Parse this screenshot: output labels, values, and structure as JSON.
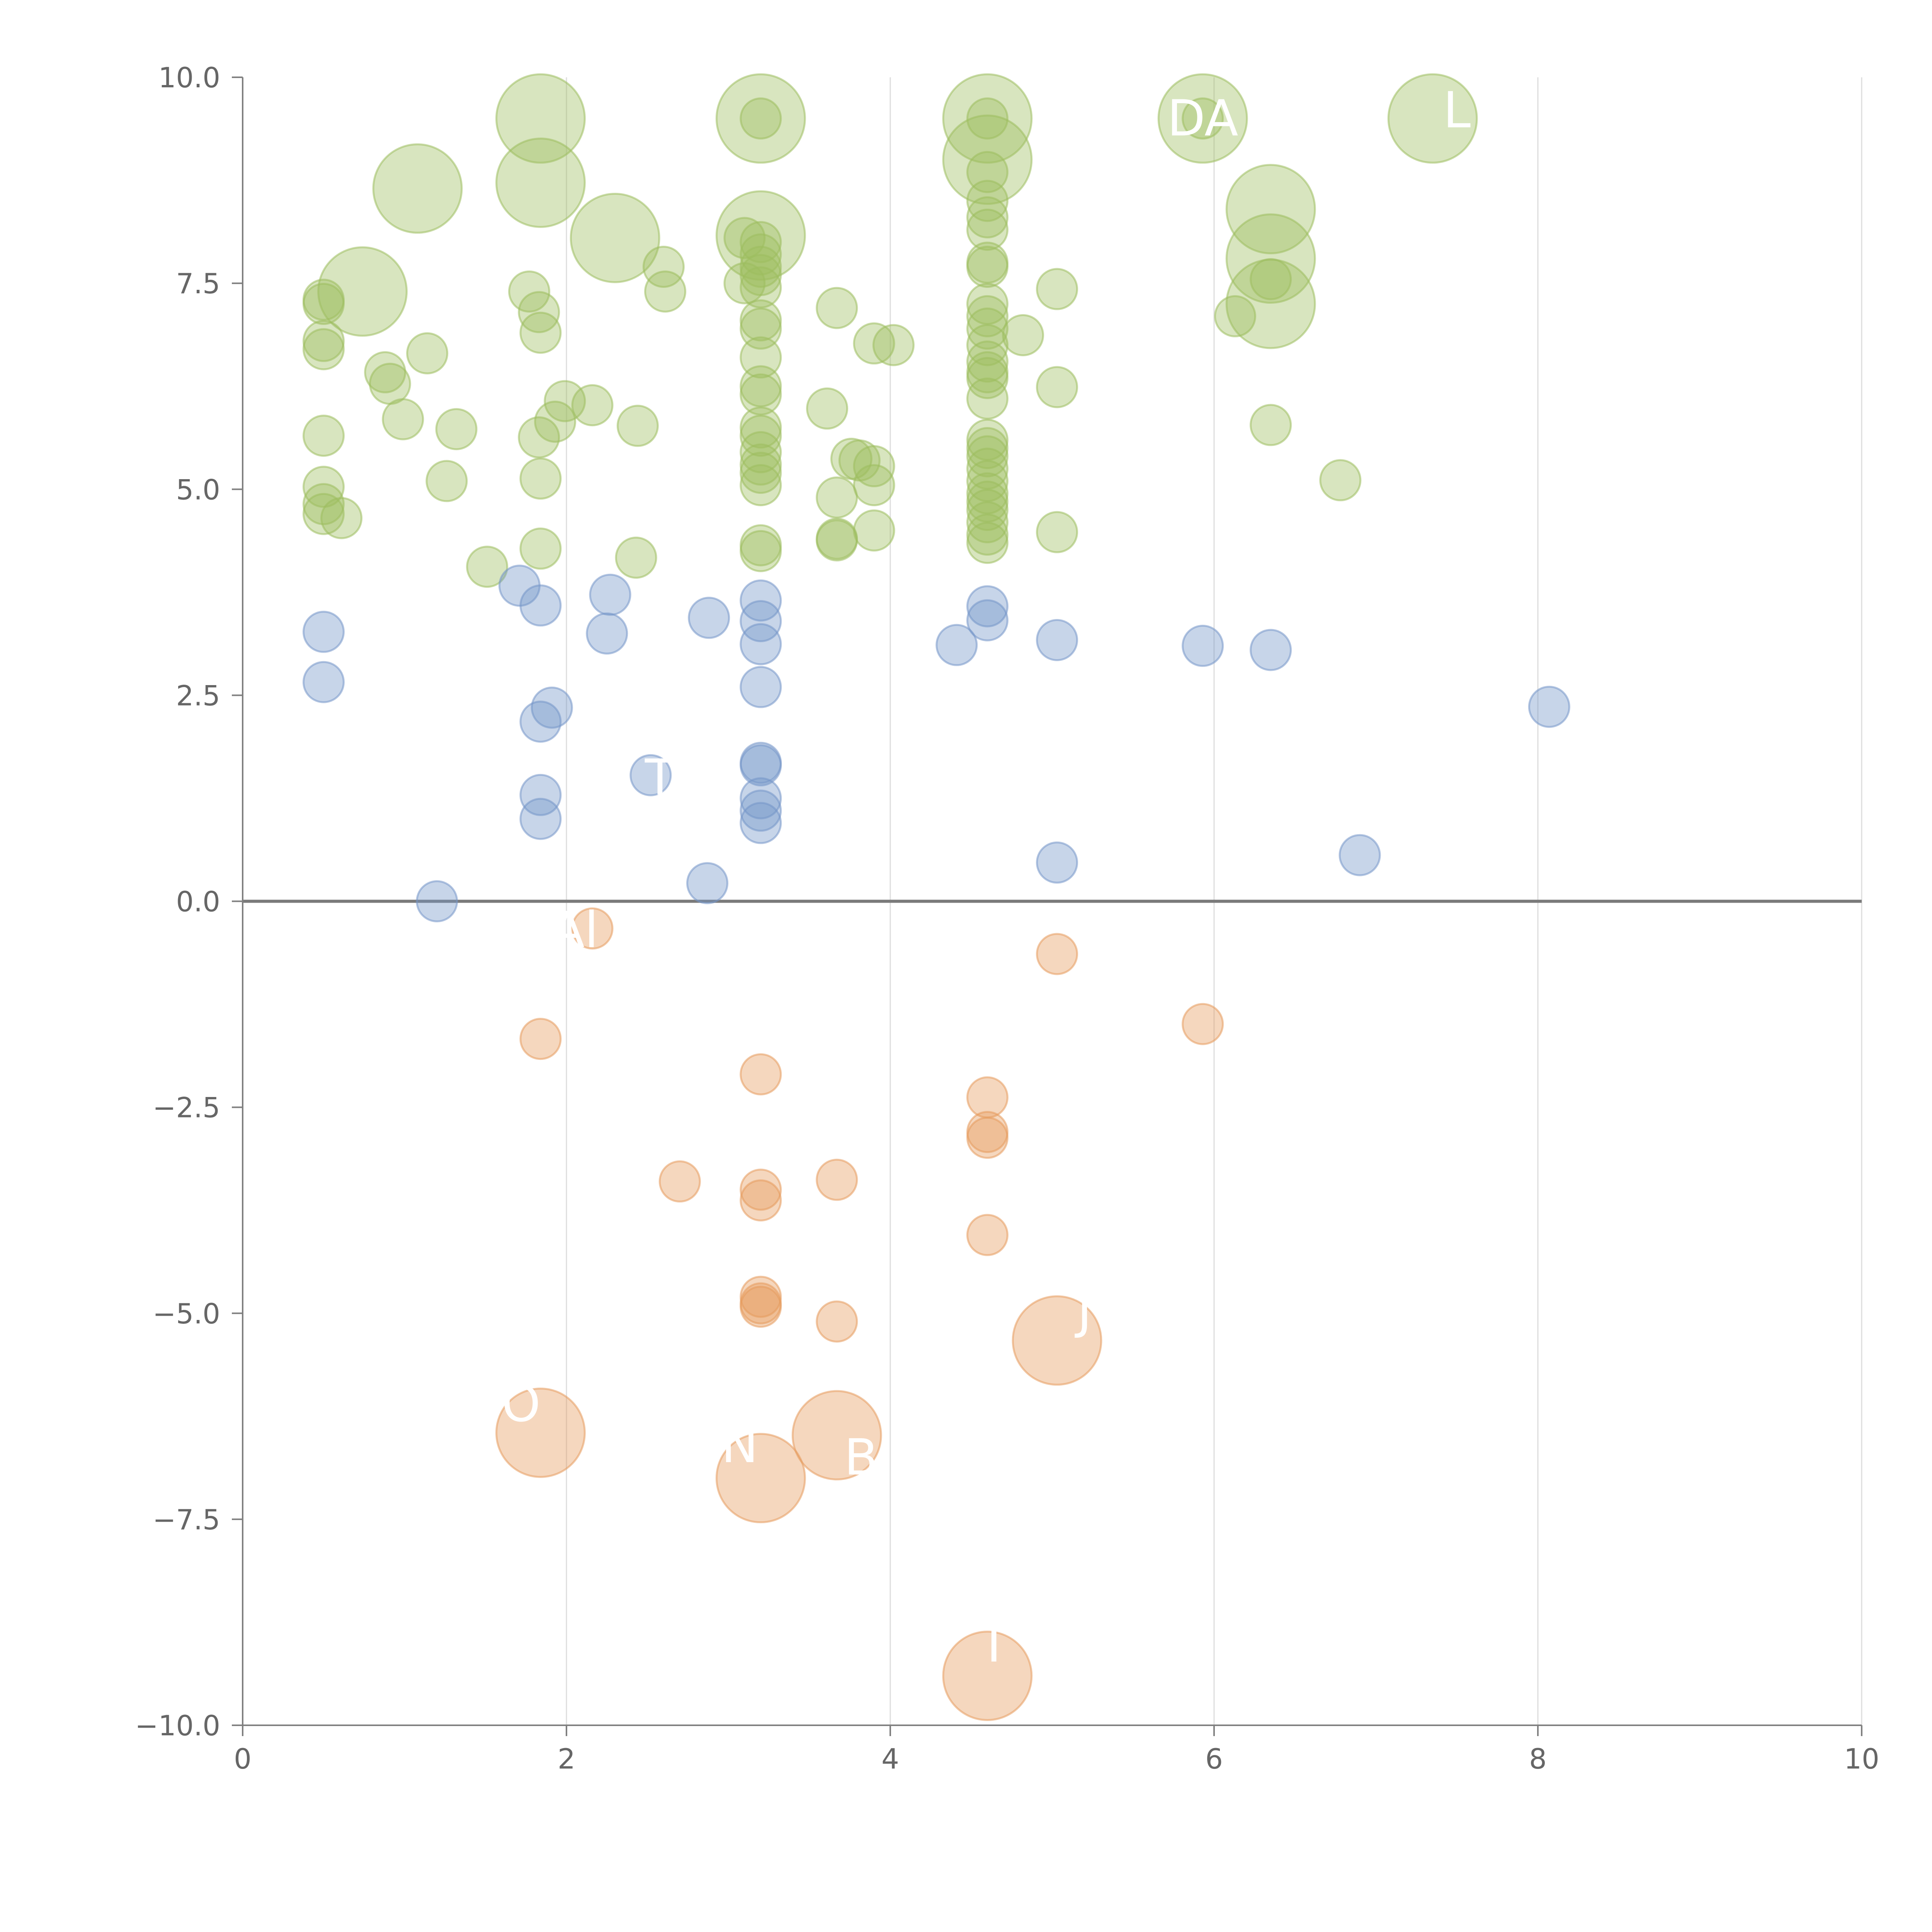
{
  "chart_data": {
    "type": "scatter",
    "title": "",
    "xlabel": "",
    "ylabel": "",
    "xlim": [
      0,
      10
    ],
    "ylim": [
      -10,
      10
    ],
    "x_ticks": [
      0,
      2,
      4,
      6,
      8,
      10
    ],
    "y_ticks": [
      -10,
      -7.5,
      -5,
      -2.5,
      0,
      2.5,
      5,
      7.5,
      10
    ],
    "x_tick_labels": [
      "0",
      "2",
      "4",
      "6",
      "8",
      "10"
    ],
    "y_tick_labels": [
      "−10.0",
      "−7.5",
      "−5.0",
      "−2.5",
      "0.0",
      "2.5",
      "5.0",
      "7.5",
      "10.0"
    ],
    "grid_x": true,
    "grid_y": false,
    "zero_line": true,
    "colors": {
      "high": "#9dbd5e",
      "mid": "#7496c8",
      "low": "#e69a5c",
      "bubble_opacity": 0.4
    },
    "size_scale": "small = 1, large = 2.2 (relative radius)",
    "series": [
      {
        "group": "high",
        "points": [
          {
            "x": 1.84,
            "y": 9.5,
            "size": 2.2
          },
          {
            "x": 3.2,
            "y": 9.5,
            "size": 2.2
          },
          {
            "x": 3.2,
            "y": 9.5,
            "size": 1
          },
          {
            "x": 4.6,
            "y": 9.5,
            "size": 2.2
          },
          {
            "x": 4.6,
            "y": 9.5,
            "size": 1
          },
          {
            "x": 5.93,
            "y": 9.5,
            "size": 2.2
          },
          {
            "x": 5.93,
            "y": 9.5,
            "size": 1
          },
          {
            "x": 7.35,
            "y": 9.5,
            "size": 2.2
          },
          {
            "x": 4.6,
            "y": 9.0,
            "size": 2.2
          },
          {
            "x": 4.6,
            "y": 8.85,
            "size": 1
          },
          {
            "x": 1.84,
            "y": 8.72,
            "size": 2.2
          },
          {
            "x": 1.08,
            "y": 8.65,
            "size": 2.2
          },
          {
            "x": 4.6,
            "y": 8.5,
            "size": 1
          },
          {
            "x": 6.35,
            "y": 8.4,
            "size": 2.2
          },
          {
            "x": 4.6,
            "y": 8.3,
            "size": 1
          },
          {
            "x": 4.6,
            "y": 8.15,
            "size": 1
          },
          {
            "x": 3.2,
            "y": 8.08,
            "size": 2.2
          },
          {
            "x": 2.3,
            "y": 8.05,
            "size": 2.2
          },
          {
            "x": 3.1,
            "y": 8.05,
            "size": 1
          },
          {
            "x": 3.2,
            "y": 8.0,
            "size": 1
          },
          {
            "x": 3.2,
            "y": 7.85,
            "size": 1
          },
          {
            "x": 6.35,
            "y": 7.8,
            "size": 2.2
          },
          {
            "x": 4.6,
            "y": 7.75,
            "size": 1
          },
          {
            "x": 3.2,
            "y": 7.7,
            "size": 1
          },
          {
            "x": 2.6,
            "y": 7.7,
            "size": 1
          },
          {
            "x": 4.6,
            "y": 7.7,
            "size": 1
          },
          {
            "x": 3.2,
            "y": 7.6,
            "size": 1
          },
          {
            "x": 6.35,
            "y": 7.55,
            "size": 1
          },
          {
            "x": 3.1,
            "y": 7.5,
            "size": 1
          },
          {
            "x": 3.2,
            "y": 7.45,
            "size": 1
          },
          {
            "x": 5.03,
            "y": 7.43,
            "size": 1
          },
          {
            "x": 0.74,
            "y": 7.4,
            "size": 2.2
          },
          {
            "x": 1.77,
            "y": 7.4,
            "size": 1
          },
          {
            "x": 2.61,
            "y": 7.4,
            "size": 1
          },
          {
            "x": 0.5,
            "y": 7.3,
            "size": 1
          },
          {
            "x": 0.5,
            "y": 7.25,
            "size": 1
          },
          {
            "x": 6.35,
            "y": 7.25,
            "size": 2.2
          },
          {
            "x": 4.6,
            "y": 7.25,
            "size": 1
          },
          {
            "x": 3.67,
            "y": 7.2,
            "size": 1
          },
          {
            "x": 1.83,
            "y": 7.15,
            "size": 1
          },
          {
            "x": 4.6,
            "y": 7.1,
            "size": 1
          },
          {
            "x": 6.13,
            "y": 7.1,
            "size": 1
          },
          {
            "x": 3.2,
            "y": 7.05,
            "size": 1
          },
          {
            "x": 3.2,
            "y": 6.95,
            "size": 1
          },
          {
            "x": 4.6,
            "y": 6.95,
            "size": 1
          },
          {
            "x": 1.84,
            "y": 6.9,
            "size": 1
          },
          {
            "x": 4.82,
            "y": 6.87,
            "size": 1
          },
          {
            "x": 0.5,
            "y": 6.8,
            "size": 1
          },
          {
            "x": 3.9,
            "y": 6.77,
            "size": 1
          },
          {
            "x": 4.02,
            "y": 6.75,
            "size": 1
          },
          {
            "x": 4.6,
            "y": 6.75,
            "size": 1
          },
          {
            "x": 0.5,
            "y": 6.7,
            "size": 1
          },
          {
            "x": 1.14,
            "y": 6.65,
            "size": 1
          },
          {
            "x": 3.2,
            "y": 6.6,
            "size": 1
          },
          {
            "x": 4.6,
            "y": 6.55,
            "size": 1
          },
          {
            "x": 0.88,
            "y": 6.42,
            "size": 1
          },
          {
            "x": 4.6,
            "y": 6.42,
            "size": 1
          },
          {
            "x": 4.6,
            "y": 6.35,
            "size": 1
          },
          {
            "x": 0.91,
            "y": 6.28,
            "size": 1
          },
          {
            "x": 3.2,
            "y": 6.25,
            "size": 1
          },
          {
            "x": 5.03,
            "y": 6.24,
            "size": 1
          },
          {
            "x": 3.2,
            "y": 6.15,
            "size": 1
          },
          {
            "x": 4.6,
            "y": 6.1,
            "size": 1
          },
          {
            "x": 1.99,
            "y": 6.07,
            "size": 1
          },
          {
            "x": 2.16,
            "y": 6.02,
            "size": 1
          },
          {
            "x": 3.61,
            "y": 5.98,
            "size": 1
          },
          {
            "x": 0.99,
            "y": 5.85,
            "size": 1
          },
          {
            "x": 1.93,
            "y": 5.82,
            "size": 1
          },
          {
            "x": 6.35,
            "y": 5.78,
            "size": 1
          },
          {
            "x": 2.44,
            "y": 5.77,
            "size": 1
          },
          {
            "x": 3.2,
            "y": 5.75,
            "size": 1
          },
          {
            "x": 1.32,
            "y": 5.73,
            "size": 1
          },
          {
            "x": 3.2,
            "y": 5.65,
            "size": 1
          },
          {
            "x": 0.5,
            "y": 5.65,
            "size": 1
          },
          {
            "x": 1.83,
            "y": 5.63,
            "size": 1
          },
          {
            "x": 4.6,
            "y": 5.6,
            "size": 1
          },
          {
            "x": 4.6,
            "y": 5.5,
            "size": 1
          },
          {
            "x": 3.2,
            "y": 5.45,
            "size": 1
          },
          {
            "x": 4.6,
            "y": 5.4,
            "size": 1
          },
          {
            "x": 3.76,
            "y": 5.37,
            "size": 1
          },
          {
            "x": 3.81,
            "y": 5.35,
            "size": 1
          },
          {
            "x": 3.2,
            "y": 5.3,
            "size": 1
          },
          {
            "x": 3.9,
            "y": 5.28,
            "size": 1
          },
          {
            "x": 4.6,
            "y": 5.25,
            "size": 1
          },
          {
            "x": 3.2,
            "y": 5.2,
            "size": 1
          },
          {
            "x": 1.84,
            "y": 5.13,
            "size": 1
          },
          {
            "x": 6.78,
            "y": 5.11,
            "size": 1
          },
          {
            "x": 1.26,
            "y": 5.1,
            "size": 1
          },
          {
            "x": 4.6,
            "y": 5.1,
            "size": 1
          },
          {
            "x": 3.2,
            "y": 5.05,
            "size": 1
          },
          {
            "x": 3.9,
            "y": 5.05,
            "size": 1
          },
          {
            "x": 0.5,
            "y": 5.03,
            "size": 1
          },
          {
            "x": 4.6,
            "y": 4.95,
            "size": 1
          },
          {
            "x": 3.67,
            "y": 4.9,
            "size": 1
          },
          {
            "x": 4.6,
            "y": 4.85,
            "size": 1
          },
          {
            "x": 0.5,
            "y": 4.82,
            "size": 1
          },
          {
            "x": 4.6,
            "y": 4.75,
            "size": 1
          },
          {
            "x": 0.5,
            "y": 4.7,
            "size": 1
          },
          {
            "x": 0.61,
            "y": 4.65,
            "size": 1
          },
          {
            "x": 4.6,
            "y": 4.6,
            "size": 1
          },
          {
            "x": 3.9,
            "y": 4.5,
            "size": 1
          },
          {
            "x": 5.03,
            "y": 4.48,
            "size": 1
          },
          {
            "x": 4.6,
            "y": 4.45,
            "size": 1
          },
          {
            "x": 3.67,
            "y": 4.4,
            "size": 1
          },
          {
            "x": 3.67,
            "y": 4.38,
            "size": 1
          },
          {
            "x": 4.6,
            "y": 4.35,
            "size": 1
          },
          {
            "x": 3.2,
            "y": 4.32,
            "size": 1
          },
          {
            "x": 1.84,
            "y": 4.28,
            "size": 1
          },
          {
            "x": 3.2,
            "y": 4.25,
            "size": 1
          },
          {
            "x": 2.43,
            "y": 4.17,
            "size": 1
          },
          {
            "x": 1.51,
            "y": 4.06,
            "size": 1
          }
        ]
      },
      {
        "group": "mid",
        "points": [
          {
            "x": 1.71,
            "y": 3.83,
            "size": 1
          },
          {
            "x": 2.27,
            "y": 3.72,
            "size": 1
          },
          {
            "x": 3.2,
            "y": 3.65,
            "size": 1
          },
          {
            "x": 1.84,
            "y": 3.59,
            "size": 1
          },
          {
            "x": 4.6,
            "y": 3.58,
            "size": 1
          },
          {
            "x": 2.88,
            "y": 3.44,
            "size": 1
          },
          {
            "x": 4.6,
            "y": 3.41,
            "size": 1
          },
          {
            "x": 3.2,
            "y": 3.4,
            "size": 1
          },
          {
            "x": 0.5,
            "y": 3.27,
            "size": 1
          },
          {
            "x": 2.25,
            "y": 3.25,
            "size": 1
          },
          {
            "x": 5.03,
            "y": 3.17,
            "size": 1
          },
          {
            "x": 3.2,
            "y": 3.12,
            "size": 1
          },
          {
            "x": 4.41,
            "y": 3.11,
            "size": 1
          },
          {
            "x": 5.93,
            "y": 3.1,
            "size": 1
          },
          {
            "x": 6.35,
            "y": 3.05,
            "size": 1
          },
          {
            "x": 0.5,
            "y": 2.66,
            "size": 1
          },
          {
            "x": 3.2,
            "y": 2.6,
            "size": 1
          },
          {
            "x": 8.07,
            "y": 2.36,
            "size": 1
          },
          {
            "x": 1.91,
            "y": 2.35,
            "size": 1
          },
          {
            "x": 1.84,
            "y": 2.18,
            "size": 1
          },
          {
            "x": 3.2,
            "y": 1.68,
            "size": 1
          },
          {
            "x": 3.2,
            "y": 1.65,
            "size": 1
          },
          {
            "x": 2.52,
            "y": 1.53,
            "size": 1
          },
          {
            "x": 1.84,
            "y": 1.29,
            "size": 1
          },
          {
            "x": 3.2,
            "y": 1.25,
            "size": 1
          },
          {
            "x": 3.2,
            "y": 1.1,
            "size": 1
          },
          {
            "x": 1.84,
            "y": 1.0,
            "size": 1
          },
          {
            "x": 3.2,
            "y": 0.95,
            "size": 1
          },
          {
            "x": 6.9,
            "y": 0.56,
            "size": 1
          },
          {
            "x": 5.03,
            "y": 0.47,
            "size": 1
          },
          {
            "x": 2.87,
            "y": 0.22,
            "size": 1
          },
          {
            "x": 1.2,
            "y": 0.0,
            "size": 1
          }
        ]
      },
      {
        "group": "low",
        "points": [
          {
            "x": 2.16,
            "y": -0.33,
            "size": 1
          },
          {
            "x": 5.03,
            "y": -0.64,
            "size": 1
          },
          {
            "x": 5.93,
            "y": -1.49,
            "size": 1
          },
          {
            "x": 1.84,
            "y": -1.67,
            "size": 1
          },
          {
            "x": 3.2,
            "y": -2.1,
            "size": 1
          },
          {
            "x": 4.6,
            "y": -2.38,
            "size": 1
          },
          {
            "x": 4.6,
            "y": -2.8,
            "size": 1
          },
          {
            "x": 4.6,
            "y": -2.87,
            "size": 1
          },
          {
            "x": 3.67,
            "y": -3.38,
            "size": 1
          },
          {
            "x": 2.7,
            "y": -3.4,
            "size": 1
          },
          {
            "x": 3.2,
            "y": -3.5,
            "size": 1
          },
          {
            "x": 3.2,
            "y": -3.63,
            "size": 1
          },
          {
            "x": 4.6,
            "y": -4.05,
            "size": 1
          },
          {
            "x": 3.2,
            "y": -4.8,
            "size": 1
          },
          {
            "x": 3.2,
            "y": -4.88,
            "size": 1
          },
          {
            "x": 3.2,
            "y": -4.92,
            "size": 1
          },
          {
            "x": 3.67,
            "y": -5.1,
            "size": 1
          },
          {
            "x": 5.03,
            "y": -5.33,
            "size": 2.2
          },
          {
            "x": 1.84,
            "y": -6.45,
            "size": 2.2
          },
          {
            "x": 3.67,
            "y": -6.48,
            "size": 2.2
          },
          {
            "x": 3.2,
            "y": -7.0,
            "size": 2.2
          },
          {
            "x": 4.6,
            "y": -9.4,
            "size": 2.2
          }
        ]
      }
    ],
    "annotations": [
      {
        "text": "DA",
        "x": 5.93,
        "y": 9.5
      },
      {
        "text": "L",
        "x": 7.5,
        "y": 9.6
      },
      {
        "text": "Tl",
        "x": 2.62,
        "y": 1.5
      },
      {
        "text": "Al",
        "x": 2.05,
        "y": -0.35
      },
      {
        "text": "J",
        "x": 5.2,
        "y": -4.97
      },
      {
        "text": "O",
        "x": 1.72,
        "y": -6.1
      },
      {
        "text": "N",
        "x": 3.07,
        "y": -6.6
      },
      {
        "text": "B",
        "x": 3.82,
        "y": -6.75
      },
      {
        "text": "T",
        "x": 4.64,
        "y": -9.02
      }
    ]
  }
}
